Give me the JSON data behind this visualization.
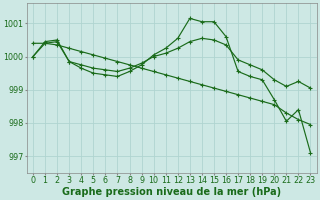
{
  "background_color": "#cde8e4",
  "grid_color": "#b0d4d0",
  "line_color": "#1a6b1a",
  "xlabel": "Graphe pression niveau de la mer (hPa)",
  "xlabel_fontsize": 7.0,
  "tick_fontsize": 5.8,
  "ylim": [
    996.5,
    1001.6
  ],
  "xlim": [
    -0.5,
    23.5
  ],
  "yticks": [
    997,
    998,
    999,
    1000,
    1001
  ],
  "xticks": [
    0,
    1,
    2,
    3,
    4,
    5,
    6,
    7,
    8,
    9,
    10,
    11,
    12,
    13,
    14,
    15,
    16,
    17,
    18,
    19,
    20,
    21,
    22,
    23
  ],
  "series1_jagged": [
    1000.0,
    1000.45,
    1000.5,
    999.85,
    999.65,
    999.5,
    999.45,
    999.4,
    999.55,
    999.75,
    1000.05,
    1000.25,
    1000.55,
    1001.15,
    1001.05,
    1001.05,
    1000.6,
    999.55,
    999.4,
    999.3,
    998.7,
    998.05,
    998.4,
    997.1
  ],
  "series2_mid": [
    1000.0,
    1000.4,
    1000.45,
    999.85,
    999.75,
    999.65,
    999.6,
    999.55,
    999.65,
    999.8,
    1000.0,
    1000.1,
    1000.25,
    1000.45,
    1000.55,
    1000.5,
    1000.35,
    999.9,
    999.75,
    999.6,
    999.3,
    999.1,
    999.25,
    999.05
  ],
  "series3_straight": [
    1000.4,
    1000.4,
    1000.35,
    1000.25,
    1000.15,
    1000.05,
    999.95,
    999.85,
    999.75,
    999.65,
    999.55,
    999.45,
    999.35,
    999.25,
    999.15,
    999.05,
    998.95,
    998.85,
    998.75,
    998.65,
    998.55,
    998.3,
    998.1,
    997.95
  ]
}
